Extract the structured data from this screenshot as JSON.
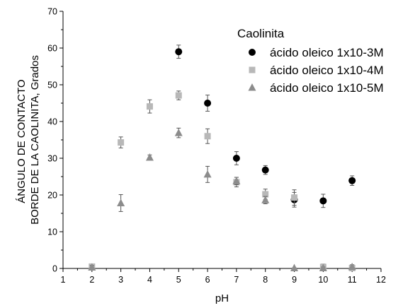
{
  "chart_data": {
    "type": "scatter",
    "title": "",
    "xlabel": "pH",
    "ylabel": [
      "ÁNGULO DE CONTACTO",
      "BORDE DE LA CAOLINITA, Grados"
    ],
    "xlim": [
      1,
      12
    ],
    "ylim": [
      0,
      70
    ],
    "xticks": [
      1,
      2,
      3,
      4,
      5,
      6,
      7,
      8,
      9,
      10,
      11,
      12
    ],
    "yticks": [
      0,
      10,
      20,
      30,
      40,
      50,
      60,
      70
    ],
    "error_bars": true,
    "legend": {
      "title": "Caolinita",
      "placement": "top-right"
    },
    "series": [
      {
        "name": "ácido oleico 1x10-3M",
        "marker": "circle",
        "color": "#000000",
        "x": [
          5,
          6,
          7,
          8,
          9,
          10,
          11
        ],
        "y": [
          59,
          45,
          30,
          26.8,
          18.7,
          18.4,
          23.9
        ],
        "error": [
          1.8,
          2.2,
          1.8,
          1.2,
          2.0,
          1.8,
          1.3
        ]
      },
      {
        "name": "ácido oleico 1x10-4M",
        "marker": "square",
        "color": "#b8b8b8",
        "x": [
          2,
          3,
          4,
          5,
          6,
          7,
          8,
          9,
          10,
          11
        ],
        "y": [
          0.5,
          34.3,
          44.1,
          47.1,
          36,
          23.5,
          20.2,
          19.3,
          0.4,
          0.1
        ],
        "error": [
          0.6,
          1.5,
          1.8,
          1.2,
          2.0,
          1.3,
          1.4,
          2.1,
          0.8,
          0.4
        ]
      },
      {
        "name": "ácido oleico 1x10-5M",
        "marker": "triangle",
        "color": "#8c8c8c",
        "x": [
          2,
          3,
          4,
          5,
          6,
          7,
          8,
          9,
          10,
          11
        ],
        "y": [
          0.3,
          17.8,
          30.2,
          36.9,
          25.6,
          23.8,
          18.6,
          0.1,
          0.1,
          0.4
        ],
        "error": [
          0.5,
          2.3,
          0.7,
          1.3,
          2.2,
          1.0,
          1.0,
          0.1,
          0.3,
          0.6
        ]
      }
    ]
  }
}
